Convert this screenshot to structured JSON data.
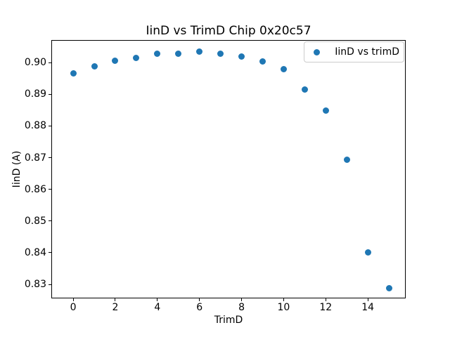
{
  "chart_data": {
    "type": "scatter",
    "title": "IinD vs TrimD Chip 0x20c57",
    "xlabel": "TrimD",
    "ylabel": "IinD (A)",
    "grid": false,
    "legend_position": "upper right",
    "xlim": [
      -1.04,
      15.8
    ],
    "ylim": [
      0.8256,
      0.9071
    ],
    "xticks": [
      0,
      2,
      4,
      6,
      8,
      10,
      12,
      14
    ],
    "yticks": [
      0.83,
      0.84,
      0.85,
      0.86,
      0.87,
      0.88,
      0.89,
      0.9
    ],
    "series": [
      {
        "name": "IinD vs trimD",
        "marker": "circle",
        "color": "#1f77b4",
        "x": [
          0,
          1,
          2,
          3,
          4,
          5,
          6,
          7,
          8,
          9,
          10,
          11,
          12,
          13,
          14,
          15
        ],
        "y": [
          0.8966,
          0.8988,
          0.9005,
          0.9015,
          0.9027,
          0.9027,
          0.9034,
          0.9027,
          0.9018,
          0.9004,
          0.8978,
          0.8915,
          0.8848,
          0.8694,
          0.8402,
          0.8289
        ]
      }
    ]
  },
  "colors": {
    "marker": "#1f77b4",
    "spine": "#000000",
    "legend_border": "#cccccc",
    "background": "#ffffff"
  }
}
